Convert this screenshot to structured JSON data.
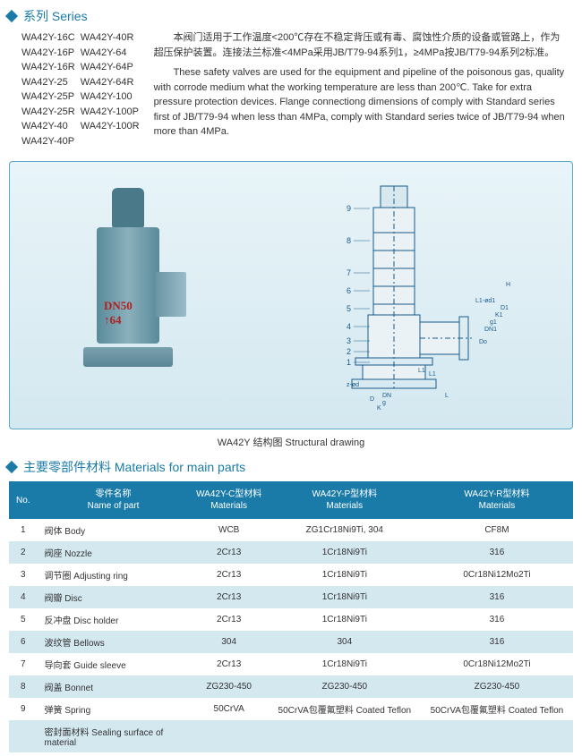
{
  "series": {
    "title": "系列 Series",
    "col1": [
      "WA42Y-16C",
      "WA42Y-16P",
      "WA42Y-16R",
      "WA42Y-25",
      "WA42Y-25P",
      "WA42Y-25R",
      "WA42Y-40",
      "WA42Y-40P"
    ],
    "col2": [
      "WA42Y-40R",
      "WA42Y-64",
      "WA42Y-64P",
      "WA42Y-64R",
      "WA42Y-100",
      "WA42Y-100P",
      "WA42Y-100R"
    ],
    "desc_cn": "本阀门适用于工作温度<200℃存在不稳定背压或有毒、腐蚀性介质的设备或管路上，作为超压保护装置。连接法兰标准<4MPa采用JB/T79-94系列1，≥4MPa按JB/T79-94系列2标准。",
    "desc_en": "These safety valves are used for the equipment and pipeline of the poisonous gas, quality with corrode medium what the working temperature are less than 200℃. Take for extra pressure protection devices. Flange connectiong dimensions of comply with Standard series first of JB/T79-94 when less than 4MPa, comply with Standard series twice of JB/T79-94 when more than 4MPa."
  },
  "valve_label1": "DN50",
  "valve_label2": "64",
  "caption": "WA42Y 结构图 Structural drawing",
  "drawing_callouts": [
    "1",
    "2",
    "3",
    "4",
    "5",
    "6",
    "7",
    "8",
    "9"
  ],
  "dims": [
    "z-ød",
    "DN",
    "g",
    "K",
    "D",
    "L1",
    "Do",
    "DN1",
    "g1",
    "K1",
    "D1",
    "L1-ød1",
    "H",
    "L",
    "L1"
  ],
  "materials_title": "主要零部件材料 Materials for main parts",
  "table": {
    "headers": {
      "no": "No.",
      "name": "零件名称\nName of part",
      "c": "WA42Y-C型材料\nMaterials",
      "p": "WA42Y-P型材料\nMaterials",
      "r": "WA42Y-R型材料\nMaterials"
    },
    "rows": [
      {
        "no": "1",
        "name": "阀体 Body",
        "c": "WCB",
        "p": "ZG1Cr18Ni9Ti, 304",
        "r": "CF8M"
      },
      {
        "no": "2",
        "name": "阀座 Nozzle",
        "c": "2Cr13",
        "p": "1Cr18Ni9Ti",
        "r": "316"
      },
      {
        "no": "3",
        "name": "调节圈 Adjusting ring",
        "c": "2Cr13",
        "p": "1Cr18Ni9Ti",
        "r": "0Cr18Ni12Mo2Ti"
      },
      {
        "no": "4",
        "name": "阀瓣 Disc",
        "c": "2Cr13",
        "p": "1Cr18Ni9Ti",
        "r": "316"
      },
      {
        "no": "5",
        "name": "反冲盘 Disc holder",
        "c": "2Cr13",
        "p": "1Cr18Ni9Ti",
        "r": "316"
      },
      {
        "no": "6",
        "name": "波纹管 Bellows",
        "c": "304",
        "p": "304",
        "r": "316"
      },
      {
        "no": "7",
        "name": "导向套 Guide sleeve",
        "c": "2Cr13",
        "p": "1Cr18Ni9Ti",
        "r": "0Cr18Ni12Mo2Ti"
      },
      {
        "no": "8",
        "name": "阀盖 Bonnet",
        "c": "ZG230-450",
        "p": "ZG230-450",
        "r": "ZG230-450"
      },
      {
        "no": "9",
        "name": "弹簧 Spring",
        "c": "50CrVA",
        "p": "50CrVA包覆氟塑料 Coated Teflon",
        "r": "50CrVA包覆氟塑料 Coated Teflon"
      },
      {
        "no": "",
        "name": "密封面材料 Sealing surface of material",
        "c": "",
        "p": "",
        "r": ""
      }
    ]
  },
  "colors": {
    "accent": "#1a7ba8",
    "row_alt": "#d4e8f0",
    "figure_border": "#5ba8c4"
  }
}
